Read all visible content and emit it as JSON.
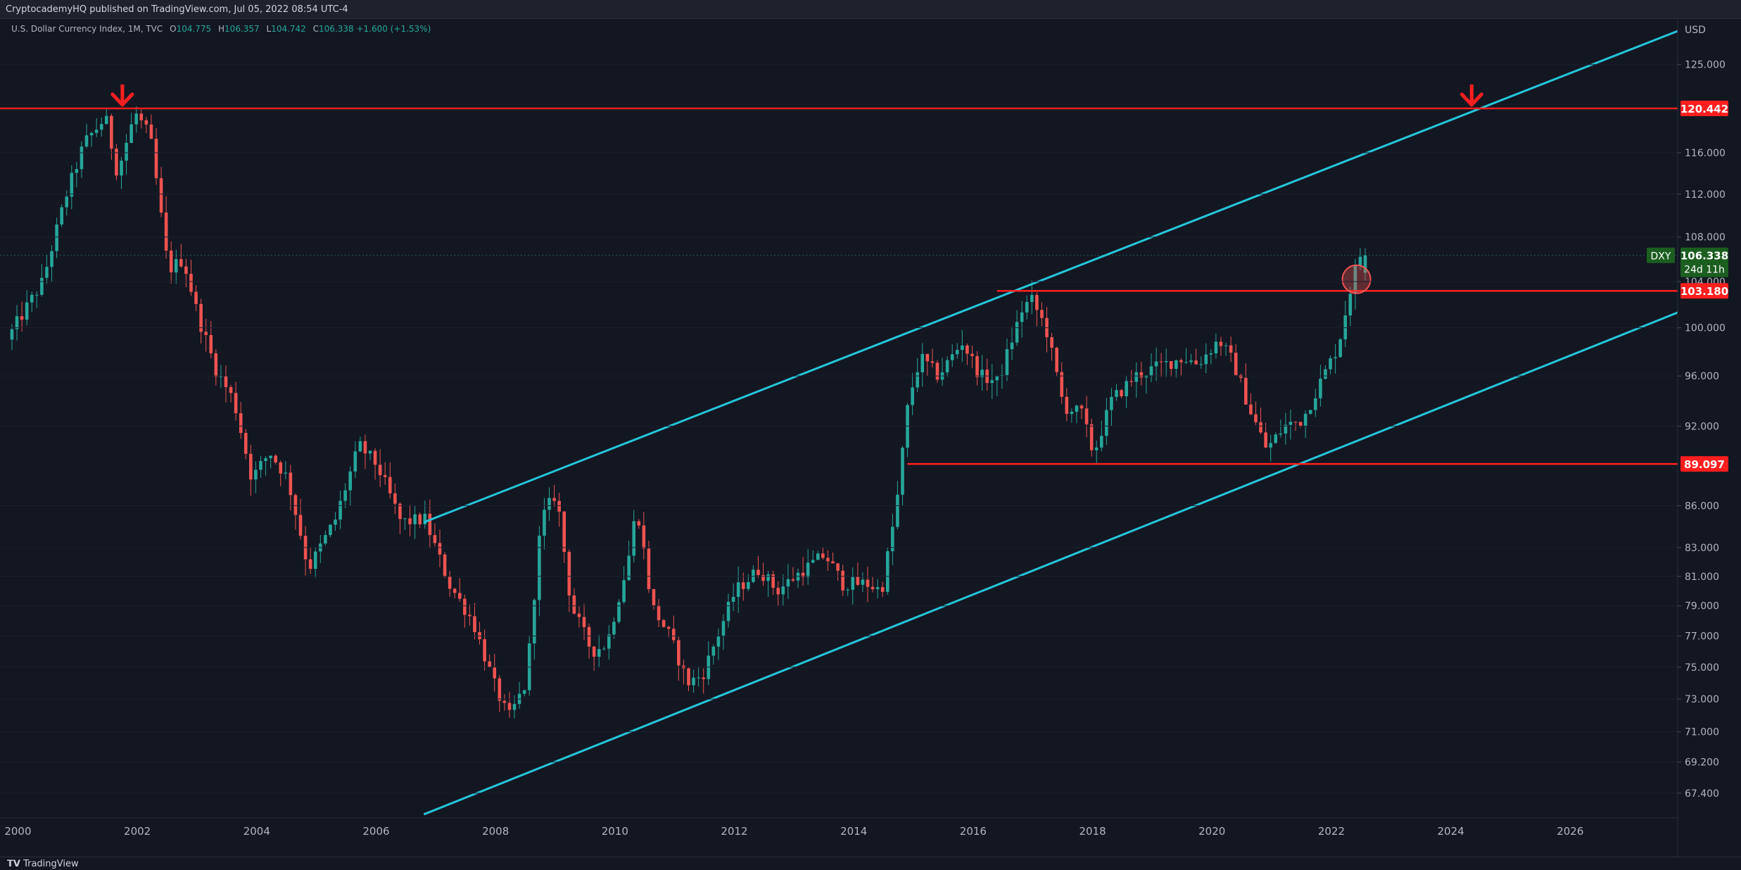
{
  "header": {
    "publisher": "CryptocademyHQ published on TradingView.com, Jul 05, 2022 08:54 UTC-4"
  },
  "legend": {
    "symbol": "U.S. Dollar Currency Index, 1M, TVC",
    "open_label": "O",
    "open": "104.775",
    "high_label": "H",
    "high": "106.357",
    "low_label": "L",
    "low": "104.742",
    "close_label": "C",
    "close": "106.338",
    "change": "+1.600 (+1.53%)"
  },
  "footer": {
    "brand": "TradingView"
  },
  "chart_data": {
    "type": "candlestick",
    "currency_label": "USD",
    "x_ticks": [
      "2000",
      "2002",
      "2004",
      "2006",
      "2008",
      "2010",
      "2012",
      "2014",
      "2016",
      "2018",
      "2020",
      "2022",
      "2024",
      "2026"
    ],
    "y_ticks": [
      "125.000",
      "116.000",
      "112.000",
      "108.000",
      "104.000",
      "100.000",
      "96.000",
      "92.000",
      "86.000",
      "83.000",
      "81.000",
      "79.000",
      "77.000",
      "75.000",
      "73.000",
      "71.000",
      "69.200",
      "67.400"
    ],
    "y_scale": "log",
    "x_range": [
      1999.7,
      2027.8
    ],
    "y_range": [
      66,
      130
    ],
    "colors": {
      "up": "#26a69a",
      "down": "#ef5350",
      "channel": "#26c6da",
      "level": "#ff1f1f",
      "background": "#131722"
    },
    "ticker_badge": {
      "symbol": "DXY",
      "price": "106.338",
      "countdown": "24d 11h"
    },
    "levels": [
      {
        "label": "120.442",
        "value": 120.442,
        "from": 1999.7
      },
      {
        "label": "103.180",
        "value": 103.18,
        "from": 2016.4
      },
      {
        "label": "89.097",
        "value": 89.097,
        "from": 2014.9
      }
    ],
    "channel_lines": [
      {
        "points": [
          [
            2006.8,
            84.8
          ],
          [
            2027.8,
            128.6
          ]
        ]
      },
      {
        "points": [
          [
            2006.8,
            66.2
          ],
          [
            2027.8,
            101.3
          ]
        ]
      }
    ],
    "markers": [
      {
        "type": "down-arrow",
        "x": 2001.75,
        "y": 120.442
      },
      {
        "type": "down-arrow",
        "x": 2024.35,
        "y": 120.442
      },
      {
        "type": "circle",
        "x": 2022.42,
        "y": 104.2
      }
    ],
    "anchors": [
      [
        1999.9,
        99
      ],
      [
        2000.5,
        104
      ],
      [
        2000.9,
        112
      ],
      [
        2001.2,
        117
      ],
      [
        2001.55,
        119.5
      ],
      [
        2001.75,
        114
      ],
      [
        2002.05,
        120
      ],
      [
        2002.3,
        117.5
      ],
      [
        2002.6,
        105
      ],
      [
        2002.85,
        106
      ],
      [
        2003.1,
        101
      ],
      [
        2003.4,
        96.5
      ],
      [
        2003.7,
        94
      ],
      [
        2004.0,
        88
      ],
      [
        2004.3,
        90
      ],
      [
        2004.6,
        88
      ],
      [
        2004.95,
        81.5
      ],
      [
        2005.4,
        85
      ],
      [
        2005.8,
        90.5
      ],
      [
        2006.1,
        89
      ],
      [
        2006.5,
        84.8
      ],
      [
        2006.9,
        85
      ],
      [
        2007.3,
        80.5
      ],
      [
        2007.7,
        78
      ],
      [
        2008.05,
        74
      ],
      [
        2008.3,
        71.8
      ],
      [
        2008.6,
        74
      ],
      [
        2008.85,
        85
      ],
      [
        2009.1,
        87
      ],
      [
        2009.35,
        79
      ],
      [
        2009.7,
        76
      ],
      [
        2009.95,
        76.5
      ],
      [
        2010.3,
        82
      ],
      [
        2010.45,
        86
      ],
      [
        2010.7,
        79
      ],
      [
        2011.0,
        77
      ],
      [
        2011.3,
        74
      ],
      [
        2011.55,
        74.5
      ],
      [
        2011.8,
        77
      ],
      [
        2012.1,
        80
      ],
      [
        2012.5,
        81.5
      ],
      [
        2012.8,
        80
      ],
      [
        2013.1,
        81
      ],
      [
        2013.6,
        82.5
      ],
      [
        2013.9,
        80.5
      ],
      [
        2014.3,
        80.5
      ],
      [
        2014.55,
        80
      ],
      [
        2014.8,
        86
      ],
      [
        2015.0,
        94
      ],
      [
        2015.2,
        97.5
      ],
      [
        2015.5,
        96
      ],
      [
        2015.9,
        98.8
      ],
      [
        2016.2,
        96
      ],
      [
        2016.5,
        95.5
      ],
      [
        2016.9,
        101.5
      ],
      [
        2017.05,
        102.5
      ],
      [
        2017.3,
        100
      ],
      [
        2017.6,
        93.5
      ],
      [
        2017.9,
        93
      ],
      [
        2018.1,
        89.8
      ],
      [
        2018.4,
        94
      ],
      [
        2018.8,
        96
      ],
      [
        2019.2,
        96.8
      ],
      [
        2019.6,
        97.5
      ],
      [
        2019.85,
        97
      ],
      [
        2020.2,
        99
      ],
      [
        2020.45,
        97
      ],
      [
        2020.7,
        93.5
      ],
      [
        2021.0,
        90.2
      ],
      [
        2021.3,
        92
      ],
      [
        2021.6,
        92.5
      ],
      [
        2021.9,
        95.5
      ],
      [
        2022.2,
        98.5
      ],
      [
        2022.4,
        103.3
      ],
      [
        2022.55,
        106.34
      ]
    ]
  }
}
